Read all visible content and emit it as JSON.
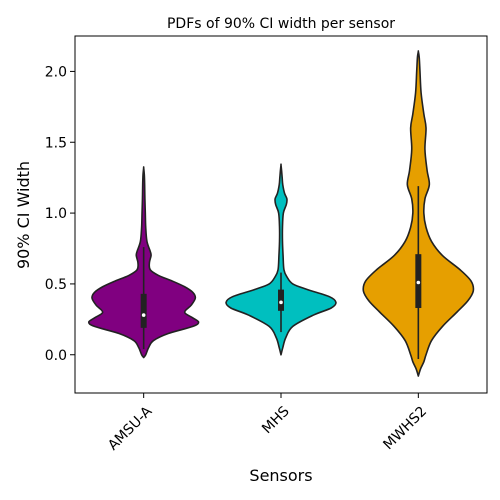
{
  "chart_data": {
    "type": "violin",
    "title": "PDFs of 90% CI width per sensor",
    "xlabel": "Sensors",
    "ylabel": "90% CI Width",
    "ylim": [
      -0.27,
      2.25
    ],
    "yticks": [
      0.0,
      0.5,
      1.0,
      1.5,
      2.0
    ],
    "ytick_labels": [
      "0.0",
      "0.5",
      "1.0",
      "1.5",
      "2.0"
    ],
    "categories": [
      "AMSU-A",
      "MHS",
      "MWHS2"
    ],
    "series": [
      {
        "name": "AMSU-A",
        "color": "#800080",
        "q1": 0.19,
        "median": 0.28,
        "q3": 0.43,
        "whisker_low": 0.04,
        "whisker_high": 0.76,
        "density": [
          [
            -0.02,
            0.0
          ],
          [
            0.0,
            0.025
          ],
          [
            0.05,
            0.06
          ],
          [
            0.1,
            0.12
          ],
          [
            0.15,
            0.3
          ],
          [
            0.2,
            0.6
          ],
          [
            0.23,
            0.67
          ],
          [
            0.26,
            0.6
          ],
          [
            0.3,
            0.5
          ],
          [
            0.35,
            0.58
          ],
          [
            0.4,
            0.63
          ],
          [
            0.44,
            0.6
          ],
          [
            0.48,
            0.5
          ],
          [
            0.52,
            0.35
          ],
          [
            0.56,
            0.18
          ],
          [
            0.6,
            0.08
          ],
          [
            0.65,
            0.07
          ],
          [
            0.7,
            0.09
          ],
          [
            0.73,
            0.08
          ],
          [
            0.8,
            0.04
          ],
          [
            0.9,
            0.025
          ],
          [
            1.0,
            0.02
          ],
          [
            1.1,
            0.015
          ],
          [
            1.2,
            0.012
          ],
          [
            1.27,
            0.008
          ],
          [
            1.32,
            0.0
          ]
        ]
      },
      {
        "name": "MHS",
        "color": "#00BFBF",
        "q1": 0.31,
        "median": 0.37,
        "q3": 0.46,
        "whisker_low": 0.16,
        "whisker_high": 0.58,
        "density": [
          [
            0.0,
            0.0
          ],
          [
            0.05,
            0.03
          ],
          [
            0.12,
            0.08
          ],
          [
            0.2,
            0.2
          ],
          [
            0.28,
            0.55
          ],
          [
            0.33,
            0.85
          ],
          [
            0.37,
            0.93
          ],
          [
            0.41,
            0.82
          ],
          [
            0.46,
            0.45
          ],
          [
            0.5,
            0.2
          ],
          [
            0.55,
            0.1
          ],
          [
            0.6,
            0.05
          ],
          [
            0.7,
            0.035
          ],
          [
            0.8,
            0.025
          ],
          [
            0.9,
            0.025
          ],
          [
            1.0,
            0.04
          ],
          [
            1.06,
            0.09
          ],
          [
            1.1,
            0.1
          ],
          [
            1.14,
            0.06
          ],
          [
            1.2,
            0.03
          ],
          [
            1.25,
            0.02
          ],
          [
            1.3,
            0.01
          ],
          [
            1.34,
            0.0
          ]
        ]
      },
      {
        "name": "MWHS2",
        "color": "#E69F00",
        "q1": 0.33,
        "median": 0.51,
        "q3": 0.71,
        "whisker_low": -0.03,
        "whisker_high": 1.19,
        "density": [
          [
            -0.15,
            0.0
          ],
          [
            -0.1,
            0.02
          ],
          [
            -0.05,
            0.05
          ],
          [
            0.0,
            0.07
          ],
          [
            0.1,
            0.12
          ],
          [
            0.2,
            0.22
          ],
          [
            0.3,
            0.35
          ],
          [
            0.38,
            0.45
          ],
          [
            0.45,
            0.5
          ],
          [
            0.52,
            0.48
          ],
          [
            0.6,
            0.38
          ],
          [
            0.7,
            0.22
          ],
          [
            0.8,
            0.12
          ],
          [
            0.9,
            0.07
          ],
          [
            1.0,
            0.05
          ],
          [
            1.1,
            0.06
          ],
          [
            1.2,
            0.1
          ],
          [
            1.3,
            0.08
          ],
          [
            1.45,
            0.06
          ],
          [
            1.6,
            0.07
          ],
          [
            1.7,
            0.05
          ],
          [
            1.85,
            0.025
          ],
          [
            2.0,
            0.015
          ],
          [
            2.1,
            0.008
          ],
          [
            2.14,
            0.0
          ]
        ]
      }
    ]
  }
}
